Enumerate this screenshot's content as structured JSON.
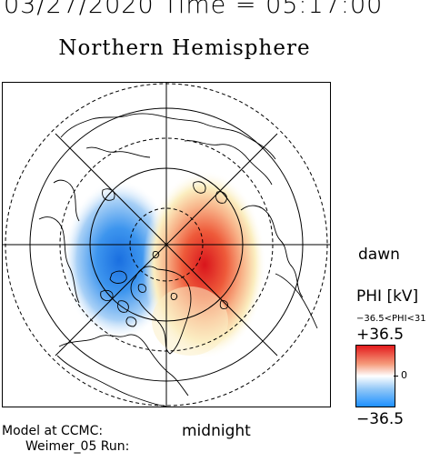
{
  "header": {
    "date_time": "03/27/2020 Time = 05:17:00",
    "title": "Northern Hemisphere"
  },
  "map": {
    "projection": "polar-stereographic",
    "hemisphere": "north",
    "orientation_labels": {
      "right": "dawn",
      "bottom": "midnight"
    },
    "potential_pattern": [
      {
        "cell": "negative",
        "side": "dusk",
        "color": "#1a73e8"
      },
      {
        "cell": "positive",
        "side": "dawn",
        "color": "#e8202a"
      }
    ]
  },
  "legend": {
    "quantity": "PHI [kV]",
    "range_text": "−36.5<PHI<31",
    "max": "+36.5",
    "zero": "0",
    "min": "−36.5",
    "colors": {
      "low": "#1e90ff",
      "mid": "#ffffff",
      "high": "#e31a1c"
    }
  },
  "footer": {
    "model_line1": "Model at CCMC:",
    "model_line2": "Weimer_05 Run:"
  }
}
